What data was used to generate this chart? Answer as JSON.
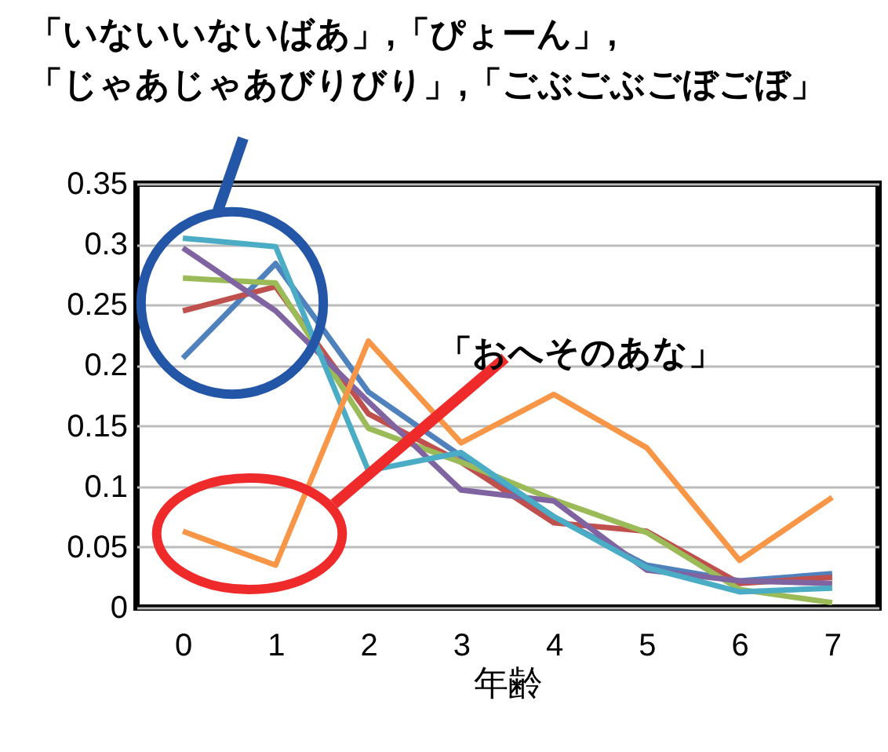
{
  "chart_data": {
    "type": "line",
    "xlabel": "年齢",
    "categories": [
      "0",
      "1",
      "2",
      "3",
      "4",
      "5",
      "6",
      "7"
    ],
    "series": [
      {
        "color": "#4f81bd",
        "values": [
          0.206,
          0.284,
          0.178,
          0.125,
          0.075,
          0.035,
          0.022,
          0.028
        ]
      },
      {
        "color": "#c0504d",
        "values": [
          0.245,
          0.265,
          0.16,
          0.12,
          0.07,
          0.063,
          0.02,
          0.025
        ]
      },
      {
        "color": "#9bbb59",
        "values": [
          0.272,
          0.268,
          0.148,
          0.12,
          0.089,
          0.062,
          0.015,
          0.004
        ]
      },
      {
        "color": "#8064a2",
        "values": [
          0.297,
          0.245,
          0.17,
          0.097,
          0.088,
          0.031,
          0.022,
          0.02
        ]
      },
      {
        "color": "#4bacc6",
        "values": [
          0.305,
          0.298,
          0.113,
          0.128,
          0.075,
          0.033,
          0.013,
          0.016
        ]
      },
      {
        "color": "#f79646",
        "values": [
          0.063,
          0.035,
          0.22,
          0.136,
          0.176,
          0.132,
          0.039,
          0.091
        ]
      }
    ],
    "ylim": [
      0,
      0.35
    ],
    "yticks": [
      0,
      0.05,
      0.1,
      0.15,
      0.2,
      0.25,
      0.3,
      0.35
    ],
    "grid": "y",
    "line_style": "solid",
    "annotations": [
      "「いないいないばあ」,「ぴょーん」,\n「じゃあじゃあびりびり」,「ごぶごぶごぼごぼ」",
      "「おへそのあな」"
    ]
  }
}
